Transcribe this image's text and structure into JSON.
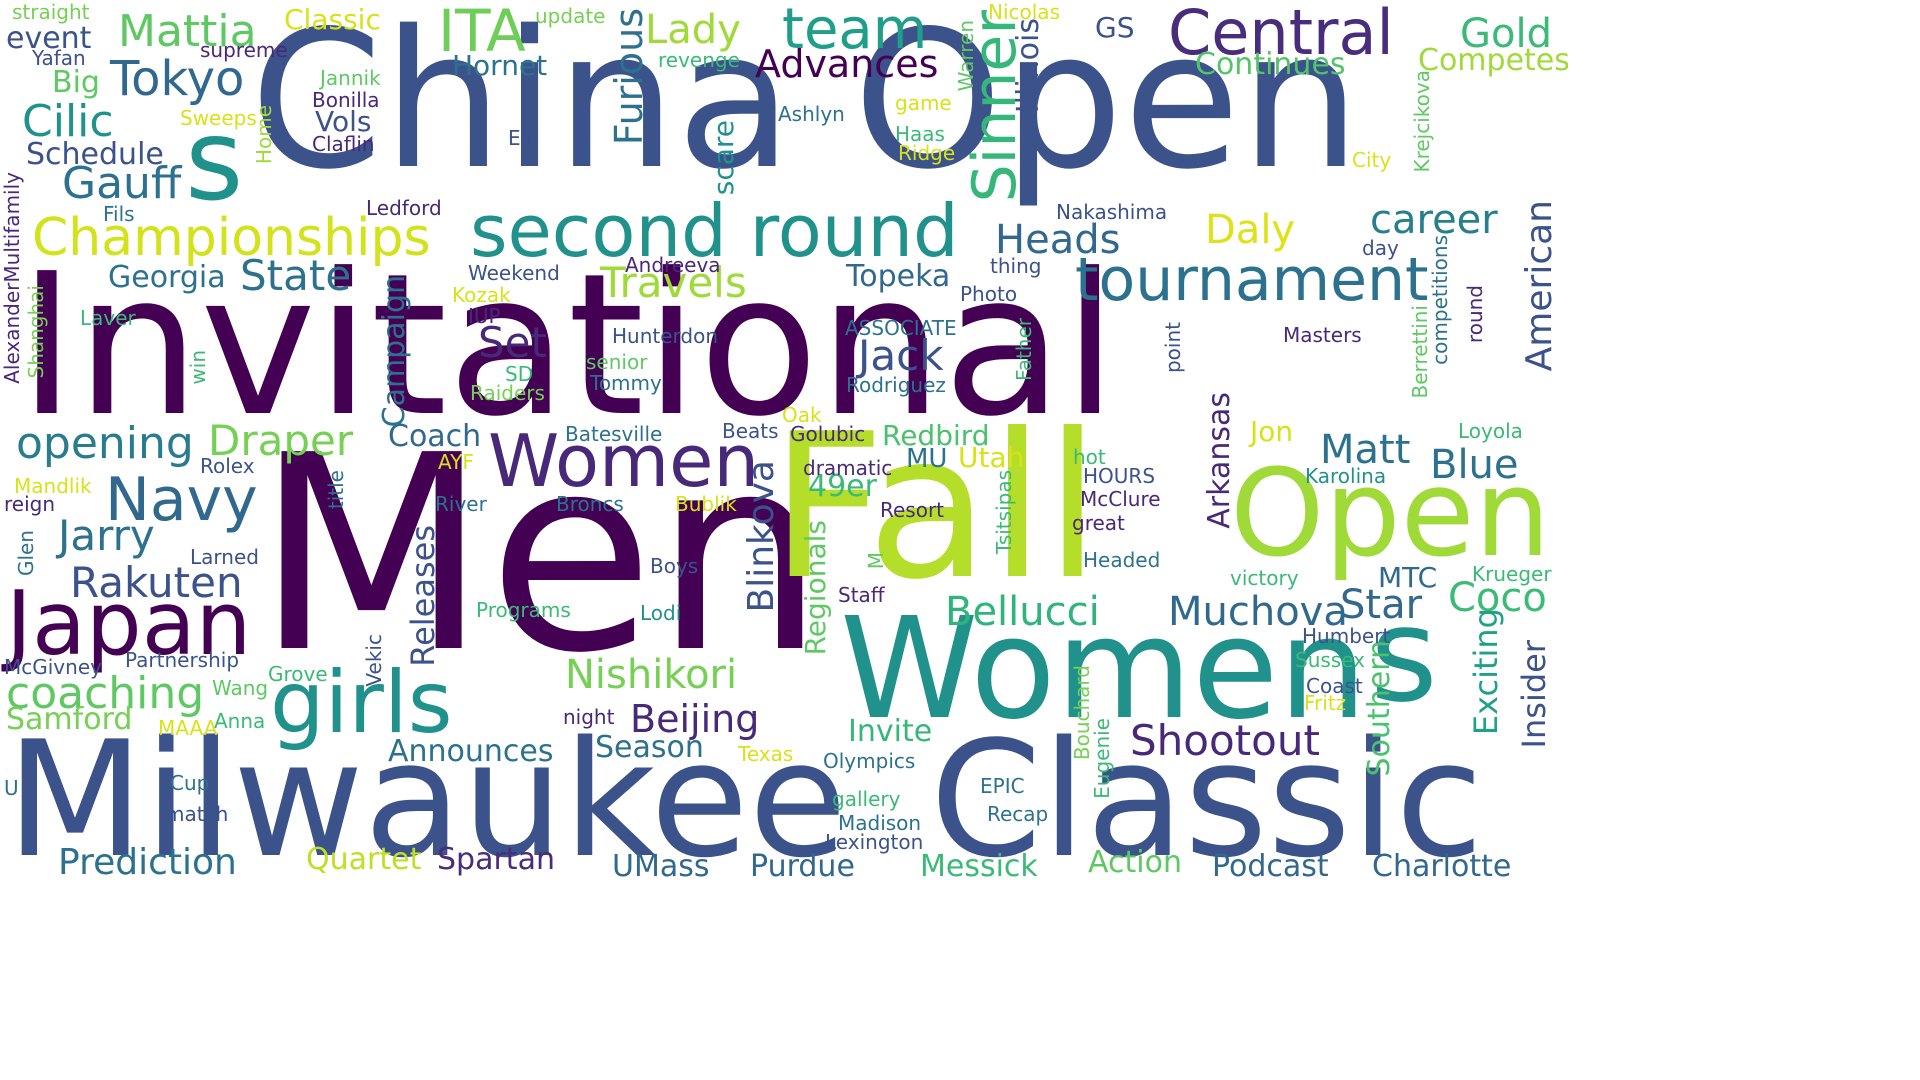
{
  "colors": {
    "background": "#ffffff"
  },
  "words": [
    {
      "t": "Invitational",
      "c": "#440154"
    },
    {
      "t": "Men",
      "c": "#440154"
    },
    {
      "t": "China Open",
      "c": "#3b528b"
    },
    {
      "t": "Fall",
      "c": "#b5de2b"
    },
    {
      "t": "Milwaukee",
      "c": "#3b528b"
    },
    {
      "t": "Classic",
      "c": "#3b528b"
    },
    {
      "t": "Women",
      "c": "#21918c"
    },
    {
      "t": "Open",
      "c": "#a0da39"
    },
    {
      "t": "s",
      "c": "#21918c"
    },
    {
      "t": "s",
      "c": "#21918c"
    },
    {
      "t": "second round",
      "c": "#21918c"
    },
    {
      "t": "Japan",
      "c": "#440154"
    },
    {
      "t": "girls",
      "c": "#21918c"
    },
    {
      "t": "tournament",
      "c": "#2c728e"
    },
    {
      "t": "Women",
      "c": "#482878"
    },
    {
      "t": "Central",
      "c": "#472d7b"
    },
    {
      "t": "team",
      "c": "#1f9e89"
    },
    {
      "t": "Championships",
      "c": "#d2e21b"
    },
    {
      "t": "Navy",
      "c": "#31688e"
    },
    {
      "t": "Sinner",
      "c": "#35b779"
    },
    {
      "t": "ITA",
      "c": "#6ece58"
    },
    {
      "t": "Tokyo",
      "c": "#31688e"
    },
    {
      "t": "Mattia",
      "c": "#5ec962"
    },
    {
      "t": "Gauff",
      "c": "#2c728e"
    },
    {
      "t": "Cilic",
      "c": "#21918c"
    },
    {
      "t": "opening",
      "c": "#287c8e"
    },
    {
      "t": "coaching",
      "c": "#5ec962"
    },
    {
      "t": "Rakuten",
      "c": "#3b528b"
    },
    {
      "t": "Jarry",
      "c": "#2c728e"
    },
    {
      "t": "Draper",
      "c": "#75d054"
    },
    {
      "t": "State",
      "c": "#2c728e"
    },
    {
      "t": "Travels",
      "c": "#a0da39"
    },
    {
      "t": "Set",
      "c": "#482878"
    },
    {
      "t": "Jack",
      "c": "#3b528b"
    },
    {
      "t": "Heads",
      "c": "#31688e"
    },
    {
      "t": "career",
      "c": "#277f8e"
    },
    {
      "t": "Daly",
      "c": "#dde318"
    },
    {
      "t": "Advances",
      "c": "#440154"
    },
    {
      "t": "Lady",
      "c": "#a0da39"
    },
    {
      "t": "Gold",
      "c": "#3aba76"
    },
    {
      "t": "Competes",
      "c": "#a0da39"
    },
    {
      "t": "Continues",
      "c": "#52c569"
    },
    {
      "t": "Matt",
      "c": "#2c728e"
    },
    {
      "t": "Blue",
      "c": "#2c728e"
    },
    {
      "t": "Coco",
      "c": "#3bbb75"
    },
    {
      "t": "Star",
      "c": "#31688e"
    },
    {
      "t": "Muchova",
      "c": "#31688e"
    },
    {
      "t": "Bellucci",
      "c": "#2fb47c"
    },
    {
      "t": "Nishikori",
      "c": "#75d054"
    },
    {
      "t": "Beijing",
      "c": "#482878"
    },
    {
      "t": "Shootout",
      "c": "#482878"
    },
    {
      "t": "Prediction",
      "c": "#2c728e"
    },
    {
      "t": "Spartan",
      "c": "#472d7b"
    },
    {
      "t": "Quartet",
      "c": "#bddf26"
    },
    {
      "t": "UMass",
      "c": "#31688e"
    },
    {
      "t": "Purdue",
      "c": "#31688e"
    },
    {
      "t": "Messick",
      "c": "#3aba76"
    },
    {
      "t": "Action",
      "c": "#5ec962"
    },
    {
      "t": "Podcast",
      "c": "#31688e"
    },
    {
      "t": "Charlotte",
      "c": "#31688e"
    },
    {
      "t": "Samford",
      "c": "#75d054"
    },
    {
      "t": "Announces",
      "c": "#2c728e"
    },
    {
      "t": "Season",
      "c": "#2c728e"
    },
    {
      "t": "Invite",
      "c": "#35b779"
    },
    {
      "t": "49er",
      "c": "#3aba76"
    },
    {
      "t": "Redbird",
      "c": "#4ac16d"
    },
    {
      "t": "Utah",
      "c": "#d8e219"
    },
    {
      "t": "MU",
      "c": "#2c728e"
    },
    {
      "t": "Topeka",
      "c": "#31688e"
    },
    {
      "t": "Coach",
      "c": "#31688e"
    },
    {
      "t": "Georgia",
      "c": "#2c728e"
    },
    {
      "t": "Schedule",
      "c": "#3b528b"
    },
    {
      "t": "Big",
      "c": "#5ec962"
    },
    {
      "t": "event",
      "c": "#3b528b"
    },
    {
      "t": "Hornet",
      "c": "#2c728e"
    },
    {
      "t": "Vols",
      "c": "#3b528b"
    },
    {
      "t": "Classic",
      "c": "#d8e219"
    },
    {
      "t": "Jon",
      "c": "#d8e219"
    },
    {
      "t": "GS",
      "c": "#3b528b"
    },
    {
      "t": "MTC",
      "c": "#31688e"
    },
    {
      "t": "Insider",
      "c": "#3b528b"
    },
    {
      "t": "Exciting",
      "c": "#1fa188"
    },
    {
      "t": "Southern",
      "c": "#4ac16d"
    },
    {
      "t": "American",
      "c": "#3b528b"
    },
    {
      "t": "Arkansas",
      "c": "#482878"
    },
    {
      "t": "Illinois",
      "c": "#3b528b"
    },
    {
      "t": "Furious",
      "c": "#2c728e"
    },
    {
      "t": "Blinkova",
      "c": "#3b528b"
    },
    {
      "t": "Releases",
      "c": "#3b528b"
    },
    {
      "t": "Regionals",
      "c": "#5ec962"
    },
    {
      "t": "Campaign",
      "c": "#2c728e"
    },
    {
      "t": "scare",
      "c": "#21918c"
    },
    {
      "t": "Yafan",
      "c": "#3b528b"
    },
    {
      "t": "straight",
      "c": "#75d054"
    },
    {
      "t": "supreme",
      "c": "#482878"
    },
    {
      "t": "update",
      "c": "#75d054"
    },
    {
      "t": "revenge",
      "c": "#3aba76"
    },
    {
      "t": "Nicolas",
      "c": "#d8e219"
    },
    {
      "t": "Warren",
      "c": "#5ec962"
    },
    {
      "t": "Jannik",
      "c": "#5ec962"
    },
    {
      "t": "Bonilla",
      "c": "#482878"
    },
    {
      "t": "Claflin",
      "c": "#482878"
    },
    {
      "t": "Sweeps",
      "c": "#d8e219"
    },
    {
      "t": "Home",
      "c": "#a0da39"
    },
    {
      "t": "Elli",
      "c": "#3b528b"
    },
    {
      "t": "Ashlyn",
      "c": "#2c728e"
    },
    {
      "t": "game",
      "c": "#d8e219"
    },
    {
      "t": "Haas",
      "c": "#3aba76"
    },
    {
      "t": "Ridge",
      "c": "#d8e219"
    },
    {
      "t": "City",
      "c": "#d8e219"
    },
    {
      "t": "Krejcikova",
      "c": "#5ec962"
    },
    {
      "t": "Fils",
      "c": "#2c728e"
    },
    {
      "t": "Ledford",
      "c": "#482878"
    },
    {
      "t": "Nakashima",
      "c": "#3b528b"
    },
    {
      "t": "AlexanderMultifamily",
      "c": "#482878"
    },
    {
      "t": "Shanghai",
      "c": "#75d054"
    },
    {
      "t": "Laver",
      "c": "#3aba76"
    },
    {
      "t": "win",
      "c": "#3aba76"
    },
    {
      "t": "Weekend",
      "c": "#3b528b"
    },
    {
      "t": "Kozak",
      "c": "#d8e219"
    },
    {
      "t": "IUP",
      "c": "#482878"
    },
    {
      "t": "Andreeva",
      "c": "#482878"
    },
    {
      "t": "thing",
      "c": "#3b528b"
    },
    {
      "t": "Photo",
      "c": "#3b528b"
    },
    {
      "t": "Hunterdon",
      "c": "#3b528b"
    },
    {
      "t": "senior",
      "c": "#5ec962"
    },
    {
      "t": "SD",
      "c": "#3aba76"
    },
    {
      "t": "Tommy",
      "c": "#2c728e"
    },
    {
      "t": "Raiders",
      "c": "#75d054"
    },
    {
      "t": "ASSOCIATE",
      "c": "#2c728e"
    },
    {
      "t": "Rodriguez",
      "c": "#2c728e"
    },
    {
      "t": "Father",
      "c": "#3aba76"
    },
    {
      "t": "point",
      "c": "#3b528b"
    },
    {
      "t": "Masters",
      "c": "#482878"
    },
    {
      "t": "Berrettini",
      "c": "#5ec962"
    },
    {
      "t": "competitions",
      "c": "#2c728e"
    },
    {
      "t": "day",
      "c": "#3b528b"
    },
    {
      "t": "round",
      "c": "#482878"
    },
    {
      "t": "Loyola",
      "c": "#3aba76"
    },
    {
      "t": "Karolina",
      "c": "#21918c"
    },
    {
      "t": "Krueger",
      "c": "#3aba76"
    },
    {
      "t": "Sussex",
      "c": "#3aba76"
    },
    {
      "t": "Coast",
      "c": "#3b528b"
    },
    {
      "t": "Fritz",
      "c": "#d8e219"
    },
    {
      "t": "Humbert",
      "c": "#3b528b"
    },
    {
      "t": "victory",
      "c": "#3aba76"
    },
    {
      "t": "hot",
      "c": "#3aba76"
    },
    {
      "t": "HOURS",
      "c": "#3b528b"
    },
    {
      "t": "McClure",
      "c": "#482878"
    },
    {
      "t": "great",
      "c": "#482878"
    },
    {
      "t": "Headed",
      "c": "#2c728e"
    },
    {
      "t": "Tsitsipas",
      "c": "#3aba76"
    },
    {
      "t": "Resort",
      "c": "#482878"
    },
    {
      "t": "dramatic",
      "c": "#482878"
    },
    {
      "t": "Golubic",
      "c": "#482878"
    },
    {
      "t": "Oak",
      "c": "#d8e219"
    },
    {
      "t": "Beats",
      "c": "#3b528b"
    },
    {
      "t": "Batesville",
      "c": "#2c728e"
    },
    {
      "t": "AYF",
      "c": "#d8e219"
    },
    {
      "t": "River",
      "c": "#2c728e"
    },
    {
      "t": "Broncs",
      "c": "#2c728e"
    },
    {
      "t": "Bublik",
      "c": "#d8e219"
    },
    {
      "t": "Rolex",
      "c": "#3b528b"
    },
    {
      "t": "Mandlik",
      "c": "#d8e219"
    },
    {
      "t": "reign",
      "c": "#482878"
    },
    {
      "t": "Glen",
      "c": "#2c728e"
    },
    {
      "t": "title",
      "c": "#2c728e"
    },
    {
      "t": "Larned",
      "c": "#3b528b"
    },
    {
      "t": "Boys",
      "c": "#3b528b"
    },
    {
      "t": "M",
      "c": "#5ec962"
    },
    {
      "t": "Staff",
      "c": "#482878"
    },
    {
      "t": "Programs",
      "c": "#3aba76"
    },
    {
      "t": "Lodi",
      "c": "#21918c"
    },
    {
      "t": "McGivney",
      "c": "#3b528b"
    },
    {
      "t": "Partnership",
      "c": "#3b528b"
    },
    {
      "t": "Wang",
      "c": "#5ec962"
    },
    {
      "t": "Grove",
      "c": "#3aba76"
    },
    {
      "t": "Vekic",
      "c": "#3b528b"
    },
    {
      "t": "Anna",
      "c": "#3aba76"
    },
    {
      "t": "MAAA",
      "c": "#d8e219"
    },
    {
      "t": "night",
      "c": "#482878"
    },
    {
      "t": "Texas",
      "c": "#d8e219"
    },
    {
      "t": "Olympics",
      "c": "#2c728e"
    },
    {
      "t": "EPIC",
      "c": "#2c728e"
    },
    {
      "t": "Recap",
      "c": "#2c728e"
    },
    {
      "t": "gallery",
      "c": "#3aba76"
    },
    {
      "t": "Madison",
      "c": "#2c728e"
    },
    {
      "t": "Lexington",
      "c": "#3b528b"
    },
    {
      "t": "Bouchard",
      "c": "#75d054"
    },
    {
      "t": "Eugenie",
      "c": "#3aba76"
    },
    {
      "t": "Cup",
      "c": "#2c728e"
    },
    {
      "t": "match",
      "c": "#3b528b"
    },
    {
      "t": "U",
      "c": "#2c728e"
    }
  ]
}
